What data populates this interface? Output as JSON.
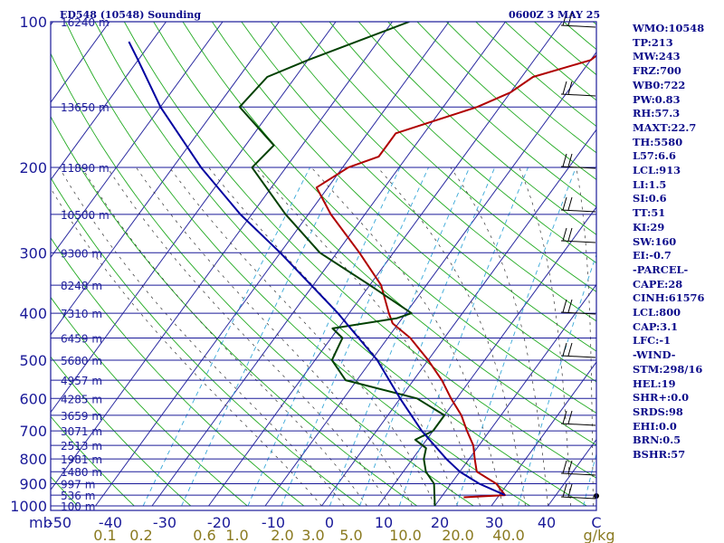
{
  "header": {
    "station": "ED548 (10548) Sounding",
    "time": "0600Z  3 MAY 25"
  },
  "indices": [
    "WMO:10548",
    "TP:213",
    "MW:243",
    "FRZ:700",
    "WB0:722",
    "PW:0.83",
    "RH:57.3",
    "MAXT:22.7",
    "TH:5580",
    "L57:6.6",
    "LCL:913",
    "LI:1.5",
    "SI:0.6",
    "TT:51",
    "KI:29",
    "SW:160",
    "EI:-0.7",
    "-PARCEL-",
    "CAPE:28",
    "CINH:61576",
    "LCL:800",
    "CAP:3.1",
    "LFC:-1",
    "-WIND-",
    "STM:298/16",
    "HEL:19",
    "SHR+:0.0",
    "SRDS:98",
    "EHI:0.0",
    "BRN:0.5",
    "BSHR:57"
  ],
  "chart_data": {
    "type": "line",
    "title": "ED548 (10548) Sounding  0600Z  3 MAY 25",
    "xlabel": "C",
    "ylabel": "mb",
    "mixing_unit": "g/kg",
    "xlim": [
      -50,
      50
    ],
    "ylim": [
      1000,
      100
    ],
    "y_scale": "log",
    "pressure_ticks": [
      100,
      200,
      300,
      400,
      500,
      600,
      700,
      800,
      900,
      1000
    ],
    "temp_ticks": [
      "-50",
      "-40",
      "-30",
      "-20",
      "-10",
      "0",
      "10",
      "20",
      "30",
      "40",
      "C"
    ],
    "mixing_ratio_ticks": [
      "0.1",
      "0.2",
      "0.6",
      "1.0",
      "2.0",
      "3.0",
      "5.0",
      "10.0",
      "20.0",
      "40.0",
      "g/kg"
    ],
    "height_levels": [
      {
        "p": 100,
        "label": "16240 m"
      },
      {
        "p": 150,
        "label": "13650 m"
      },
      {
        "p": 200,
        "label": "11890 m"
      },
      {
        "p": 250,
        "label": "10500 m"
      },
      {
        "p": 300,
        "label": "9300 m"
      },
      {
        "p": 350,
        "label": "8248 m"
      },
      {
        "p": 400,
        "label": "7310 m"
      },
      {
        "p": 450,
        "label": "6459 m"
      },
      {
        "p": 500,
        "label": "5680 m"
      },
      {
        "p": 550,
        "label": "4957 m"
      },
      {
        "p": 600,
        "label": "4285 m"
      },
      {
        "p": 650,
        "label": "3659 m"
      },
      {
        "p": 700,
        "label": "3071 m"
      },
      {
        "p": 750,
        "label": "2513 m"
      },
      {
        "p": 800,
        "label": "1981 m"
      },
      {
        "p": 850,
        "label": "1480 m"
      },
      {
        "p": 900,
        "label": "997 m"
      },
      {
        "p": 950,
        "label": "536 m"
      },
      {
        "p": 1000,
        "label": "100 m"
      }
    ],
    "series": [
      {
        "color": "#b00000",
        "points": [
          {
            "p": 960,
            "t": 14
          },
          {
            "p": 950,
            "t": 21
          },
          {
            "p": 900,
            "t": 18
          },
          {
            "p": 850,
            "t": 13
          },
          {
            "p": 800,
            "t": 11
          },
          {
            "p": 750,
            "t": 9
          },
          {
            "p": 700,
            "t": 6
          },
          {
            "p": 650,
            "t": 3
          },
          {
            "p": 600,
            "t": -1
          },
          {
            "p": 550,
            "t": -5
          },
          {
            "p": 500,
            "t": -10
          },
          {
            "p": 450,
            "t": -16
          },
          {
            "p": 420,
            "t": -21
          },
          {
            "p": 400,
            "t": -23
          },
          {
            "p": 350,
            "t": -28
          },
          {
            "p": 300,
            "t": -36
          },
          {
            "p": 250,
            "t": -46
          },
          {
            "p": 220,
            "t": -52
          },
          {
            "p": 200,
            "t": -49
          },
          {
            "p": 190,
            "t": -45
          },
          {
            "p": 180,
            "t": -45
          },
          {
            "p": 170,
            "t": -45
          },
          {
            "p": 150,
            "t": -34
          },
          {
            "p": 140,
            "t": -30
          },
          {
            "p": 130,
            "t": -28
          },
          {
            "p": 120,
            "t": -20
          },
          {
            "p": 100,
            "t": -16
          }
        ]
      },
      {
        "color": "#004000",
        "points": [
          {
            "p": 1000,
            "t": 10
          },
          {
            "p": 900,
            "t": 7
          },
          {
            "p": 850,
            "t": 4
          },
          {
            "p": 800,
            "t": 2
          },
          {
            "p": 760,
            "t": 1
          },
          {
            "p": 730,
            "t": -2
          },
          {
            "p": 700,
            "t": 0
          },
          {
            "p": 650,
            "t": 0
          },
          {
            "p": 600,
            "t": -7
          },
          {
            "p": 550,
            "t": -22
          },
          {
            "p": 500,
            "t": -27
          },
          {
            "p": 450,
            "t": -28
          },
          {
            "p": 430,
            "t": -31
          },
          {
            "p": 410,
            "t": -21
          },
          {
            "p": 400,
            "t": -19
          },
          {
            "p": 350,
            "t": -30
          },
          {
            "p": 300,
            "t": -43
          },
          {
            "p": 250,
            "t": -54
          },
          {
            "p": 200,
            "t": -66
          },
          {
            "p": 180,
            "t": -65
          },
          {
            "p": 150,
            "t": -76
          },
          {
            "p": 130,
            "t": -75
          },
          {
            "p": 120,
            "t": -70
          },
          {
            "p": 100,
            "t": -57
          }
        ]
      },
      {
        "color": "#0000a0",
        "points": [
          {
            "p": 950,
            "t": 21
          },
          {
            "p": 900,
            "t": 15
          },
          {
            "p": 850,
            "t": 10
          },
          {
            "p": 800,
            "t": 6
          },
          {
            "p": 700,
            "t": -2
          },
          {
            "p": 600,
            "t": -10
          },
          {
            "p": 500,
            "t": -19
          },
          {
            "p": 400,
            "t": -32
          },
          {
            "p": 300,
            "t": -50
          },
          {
            "p": 250,
            "t": -62
          },
          {
            "p": 200,
            "t": -75
          },
          {
            "p": 150,
            "t": -90
          },
          {
            "p": 120,
            "t": -100
          },
          {
            "p": 110,
            "t": -104
          }
        ]
      }
    ]
  }
}
